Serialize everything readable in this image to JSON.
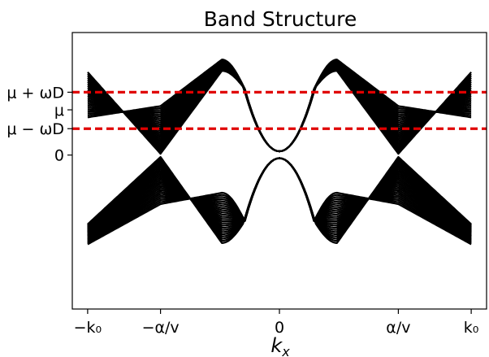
{
  "chart_data": {
    "type": "line",
    "title": "Band Structure",
    "xlabel": "k_x",
    "ylabel": "",
    "xlim": [
      -1.08,
      1.08
    ],
    "ylim": [
      -2.45,
      1.95
    ],
    "grid": false,
    "x_ticks": [
      {
        "value": -1.0,
        "label": "−k₀"
      },
      {
        "value": -0.62,
        "label": "−α/v"
      },
      {
        "value": 0.0,
        "label": "0"
      },
      {
        "value": 0.62,
        "label": "α/v"
      },
      {
        "value": 1.0,
        "label": "k₀"
      }
    ],
    "y_ticks": [
      {
        "value": 0.0,
        "label": "0"
      },
      {
        "value": 0.42,
        "label": "μ − ωD"
      },
      {
        "value": 0.72,
        "label": "μ"
      },
      {
        "value": 1.0,
        "label": "μ + ωD"
      }
    ],
    "reference_lines": [
      {
        "y": 1.0,
        "color": "#e00000",
        "style": "dashed",
        "label": "μ + ωD"
      },
      {
        "y": 0.42,
        "color": "#e00000",
        "style": "dashed",
        "label": "μ − ωD"
      }
    ],
    "line_color": "#000000",
    "band_model": {
      "band_count": 24,
      "upper": {
        "side_x_min": [
          -1.0,
          0.25
        ],
        "side_min_energy": [
          0.02,
          0.78
        ],
        "side_max_energy": [
          1.34,
          1.52
        ],
        "side_end_energy": [
          1.32,
          0.6
        ],
        "center_min_energy": 0.06,
        "slope_scale": 3.2
      },
      "lower": {
        "side_x_max": [
          -1.0,
          0.25
        ],
        "side_max_energy": [
          -0.03,
          -0.78
        ],
        "side_min_energy": [
          -1.4,
          -0.6
        ],
        "side_end_energy": [
          -1.1,
          -1.42
        ],
        "center_max_energy": -0.05,
        "slope_scale": 3.2
      }
    }
  }
}
